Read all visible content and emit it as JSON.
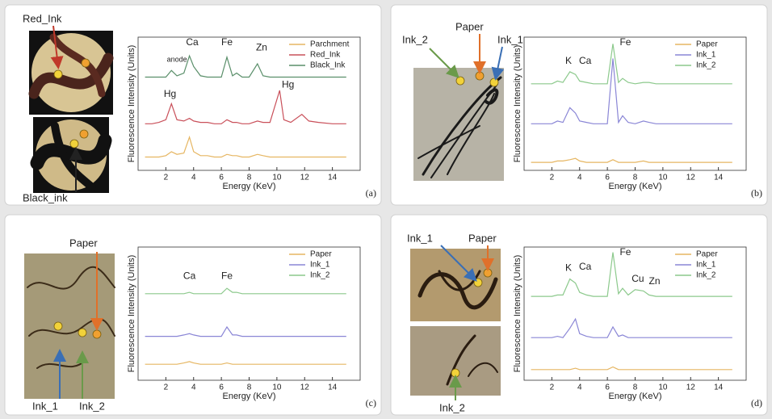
{
  "chart_data": [
    {
      "type": "line",
      "x_label": "Energy (KeV)",
      "y_label": "Fluorescence Intensity (Units)",
      "xlim": [
        0,
        16
      ],
      "xticks": [
        2,
        4,
        6,
        8,
        10,
        12,
        14
      ],
      "ylim": [
        0,
        10
      ],
      "x": [
        0.5,
        1,
        1.5,
        2,
        2.4,
        2.8,
        3.3,
        3.7,
        4,
        4.5,
        5,
        5.5,
        6,
        6.4,
        6.8,
        7.1,
        7.5,
        8,
        8.6,
        9,
        9.5,
        10.2,
        10.5,
        11,
        11.8,
        12.3,
        13,
        14,
        15
      ],
      "series": [
        {
          "name": "Parchment",
          "color": "#e6b662",
          "values": [
            1,
            1,
            1,
            1.1,
            1.4,
            1.2,
            1.3,
            2.5,
            1.4,
            1.1,
            1.1,
            1,
            1,
            1.2,
            1.1,
            1.1,
            1,
            1,
            1.2,
            1.1,
            1,
            1,
            1,
            1,
            1,
            1,
            1,
            1,
            1
          ]
        },
        {
          "name": "Red_Ink",
          "color": "#c9505a",
          "values": [
            3.5,
            3.5,
            3.6,
            3.8,
            5,
            3.8,
            3.7,
            3.9,
            3.7,
            3.6,
            3.6,
            3.5,
            3.5,
            3.8,
            3.6,
            3.6,
            3.5,
            3.5,
            3.7,
            3.6,
            3.6,
            6,
            3.8,
            3.6,
            4.2,
            3.7,
            3.6,
            3.5,
            3.5
          ]
        },
        {
          "name": "Black_Ink",
          "color": "#5a8f6a",
          "values": [
            7,
            7,
            7,
            7,
            7.5,
            7.1,
            7.3,
            8.6,
            7.8,
            7.1,
            7,
            7,
            7,
            8.5,
            7.1,
            7.3,
            7,
            7,
            8,
            7.1,
            7,
            7,
            7,
            7,
            7,
            7,
            7,
            7,
            7
          ]
        }
      ],
      "annotations": [
        "anode",
        "Ca",
        "Fe",
        "Zn",
        "Hg",
        "Hg"
      ]
    },
    {
      "type": "line",
      "x_label": "Energy (KeV)",
      "y_label": "Fluorescence Intensity (Units)",
      "xlim": [
        0,
        16
      ],
      "xticks": [
        2,
        4,
        6,
        8,
        10,
        12,
        14
      ],
      "ylim": [
        0,
        10
      ],
      "x": [
        0.5,
        1,
        1.5,
        2,
        2.4,
        2.8,
        3.3,
        3.7,
        4,
        4.5,
        5,
        5.5,
        6,
        6.4,
        6.8,
        7.1,
        7.5,
        8,
        8.6,
        9,
        9.5,
        10.2,
        10.5,
        11,
        11.8,
        12.3,
        13,
        14,
        15
      ],
      "series": [
        {
          "name": "Paper",
          "color": "#e6b662",
          "values": [
            0.6,
            0.6,
            0.6,
            0.6,
            0.7,
            0.7,
            0.8,
            0.9,
            0.7,
            0.6,
            0.6,
            0.6,
            0.6,
            0.8,
            0.6,
            0.6,
            0.6,
            0.6,
            0.7,
            0.6,
            0.6,
            0.6,
            0.6,
            0.6,
            0.6,
            0.6,
            0.6,
            0.6,
            0.6
          ]
        },
        {
          "name": "Ink_1",
          "color": "#8a86d6",
          "values": [
            3.5,
            3.5,
            3.5,
            3.5,
            3.7,
            3.6,
            4.7,
            4.3,
            3.7,
            3.6,
            3.5,
            3.5,
            3.5,
            8.4,
            3.6,
            4.1,
            3.6,
            3.5,
            3.7,
            3.6,
            3.5,
            3.5,
            3.5,
            3.5,
            3.5,
            3.5,
            3.5,
            3.5,
            3.5
          ]
        },
        {
          "name": "Ink_2",
          "color": "#8cc98c",
          "values": [
            6.5,
            6.5,
            6.5,
            6.5,
            6.7,
            6.6,
            7.4,
            7.2,
            6.7,
            6.6,
            6.5,
            6.5,
            6.5,
            9.5,
            6.6,
            6.9,
            6.6,
            6.5,
            6.6,
            6.6,
            6.5,
            6.5,
            6.5,
            6.5,
            6.5,
            6.5,
            6.5,
            6.5,
            6.5
          ]
        }
      ],
      "annotations": [
        "K",
        "Ca",
        "Fe"
      ]
    },
    {
      "type": "line",
      "x_label": "Energy (KeV)",
      "y_label": "Fluorescence Intensity (Units)",
      "xlim": [
        0,
        16
      ],
      "xticks": [
        2,
        4,
        6,
        8,
        10,
        12,
        14
      ],
      "ylim": [
        0,
        10
      ],
      "x": [
        0.5,
        1,
        1.5,
        2,
        2.4,
        2.8,
        3.3,
        3.7,
        4,
        4.5,
        5,
        5.5,
        6,
        6.4,
        6.8,
        7.1,
        7.5,
        8,
        8.6,
        9,
        9.5,
        10.2,
        10.5,
        11,
        11.8,
        12.3,
        13,
        14,
        15
      ],
      "series": [
        {
          "name": "Paper",
          "color": "#e6b662",
          "values": [
            1.2,
            1.2,
            1.2,
            1.2,
            1.2,
            1.2,
            1.3,
            1.4,
            1.3,
            1.2,
            1.2,
            1.2,
            1.2,
            1.3,
            1.2,
            1.2,
            1.2,
            1.2,
            1.2,
            1.2,
            1.2,
            1.2,
            1.2,
            1.2,
            1.2,
            1.2,
            1.2,
            1.2,
            1.2
          ]
        },
        {
          "name": "Ink_1",
          "color": "#8a86d6",
          "values": [
            3.3,
            3.3,
            3.3,
            3.3,
            3.3,
            3.3,
            3.4,
            3.5,
            3.4,
            3.3,
            3.3,
            3.3,
            3.3,
            4,
            3.4,
            3.4,
            3.3,
            3.3,
            3.3,
            3.3,
            3.3,
            3.3,
            3.3,
            3.3,
            3.3,
            3.3,
            3.3,
            3.3,
            3.3
          ]
        },
        {
          "name": "Ink_2",
          "color": "#8cc98c",
          "values": [
            6.5,
            6.5,
            6.5,
            6.5,
            6.5,
            6.5,
            6.5,
            6.6,
            6.5,
            6.5,
            6.5,
            6.5,
            6.5,
            6.9,
            6.6,
            6.6,
            6.5,
            6.5,
            6.5,
            6.5,
            6.5,
            6.5,
            6.5,
            6.5,
            6.5,
            6.5,
            6.5,
            6.5,
            6.5
          ]
        }
      ],
      "annotations": [
        "Ca",
        "Fe"
      ]
    },
    {
      "type": "line",
      "x_label": "Energy (KeV)",
      "y_label": "Fluorescence Intensity (Units)",
      "xlim": [
        0,
        16
      ],
      "xticks": [
        2,
        4,
        6,
        8,
        10,
        12,
        14
      ],
      "ylim": [
        0,
        10
      ],
      "x": [
        0.5,
        1,
        1.5,
        2,
        2.4,
        2.8,
        3.3,
        3.7,
        4,
        4.5,
        5,
        5.5,
        6,
        6.4,
        6.8,
        7.1,
        7.5,
        8,
        8.6,
        9,
        9.5,
        10.2,
        10.5,
        11,
        11.8,
        12.3,
        13,
        14,
        15
      ],
      "series": [
        {
          "name": "Paper",
          "color": "#e6b662",
          "values": [
            0.8,
            0.8,
            0.8,
            0.8,
            0.8,
            0.8,
            0.8,
            0.9,
            0.8,
            0.8,
            0.8,
            0.8,
            0.8,
            1,
            0.8,
            0.8,
            0.8,
            0.8,
            0.8,
            0.8,
            0.8,
            0.8,
            0.8,
            0.8,
            0.8,
            0.8,
            0.8,
            0.8,
            0.8
          ]
        },
        {
          "name": "Ink_1",
          "color": "#8a86d6",
          "values": [
            3.2,
            3.2,
            3.2,
            3.2,
            3.3,
            3.2,
            3.9,
            4.6,
            3.5,
            3.3,
            3.2,
            3.2,
            3.2,
            4,
            3.3,
            3.4,
            3.2,
            3.2,
            3.2,
            3.2,
            3.2,
            3.2,
            3.2,
            3.2,
            3.2,
            3.2,
            3.2,
            3.2,
            3.2
          ]
        },
        {
          "name": "Ink_2",
          "color": "#8cc98c",
          "values": [
            6.3,
            6.3,
            6.3,
            6.3,
            6.4,
            6.4,
            7.6,
            7.3,
            6.6,
            6.4,
            6.3,
            6.3,
            6.3,
            9.6,
            6.5,
            6.9,
            6.4,
            6.8,
            6.7,
            6.4,
            6.3,
            6.3,
            6.3,
            6.3,
            6.3,
            6.3,
            6.3,
            6.3,
            6.3
          ]
        }
      ],
      "annotations": [
        "K",
        "Ca",
        "Fe",
        "Cu",
        "Zn"
      ]
    }
  ],
  "panels": [
    {
      "label": "(a)",
      "photo_labels": [
        "Red_Ink",
        "Black_ink"
      ]
    },
    {
      "label": "(b)",
      "photo_labels": [
        "Ink_2",
        "Paper",
        "Ink_1"
      ]
    },
    {
      "label": "(c)",
      "photo_labels": [
        "Paper",
        "Ink_1",
        "Ink_2"
      ]
    },
    {
      "label": "(d)",
      "photo_labels": [
        "Ink_1",
        "Paper",
        "Ink_2"
      ]
    }
  ]
}
